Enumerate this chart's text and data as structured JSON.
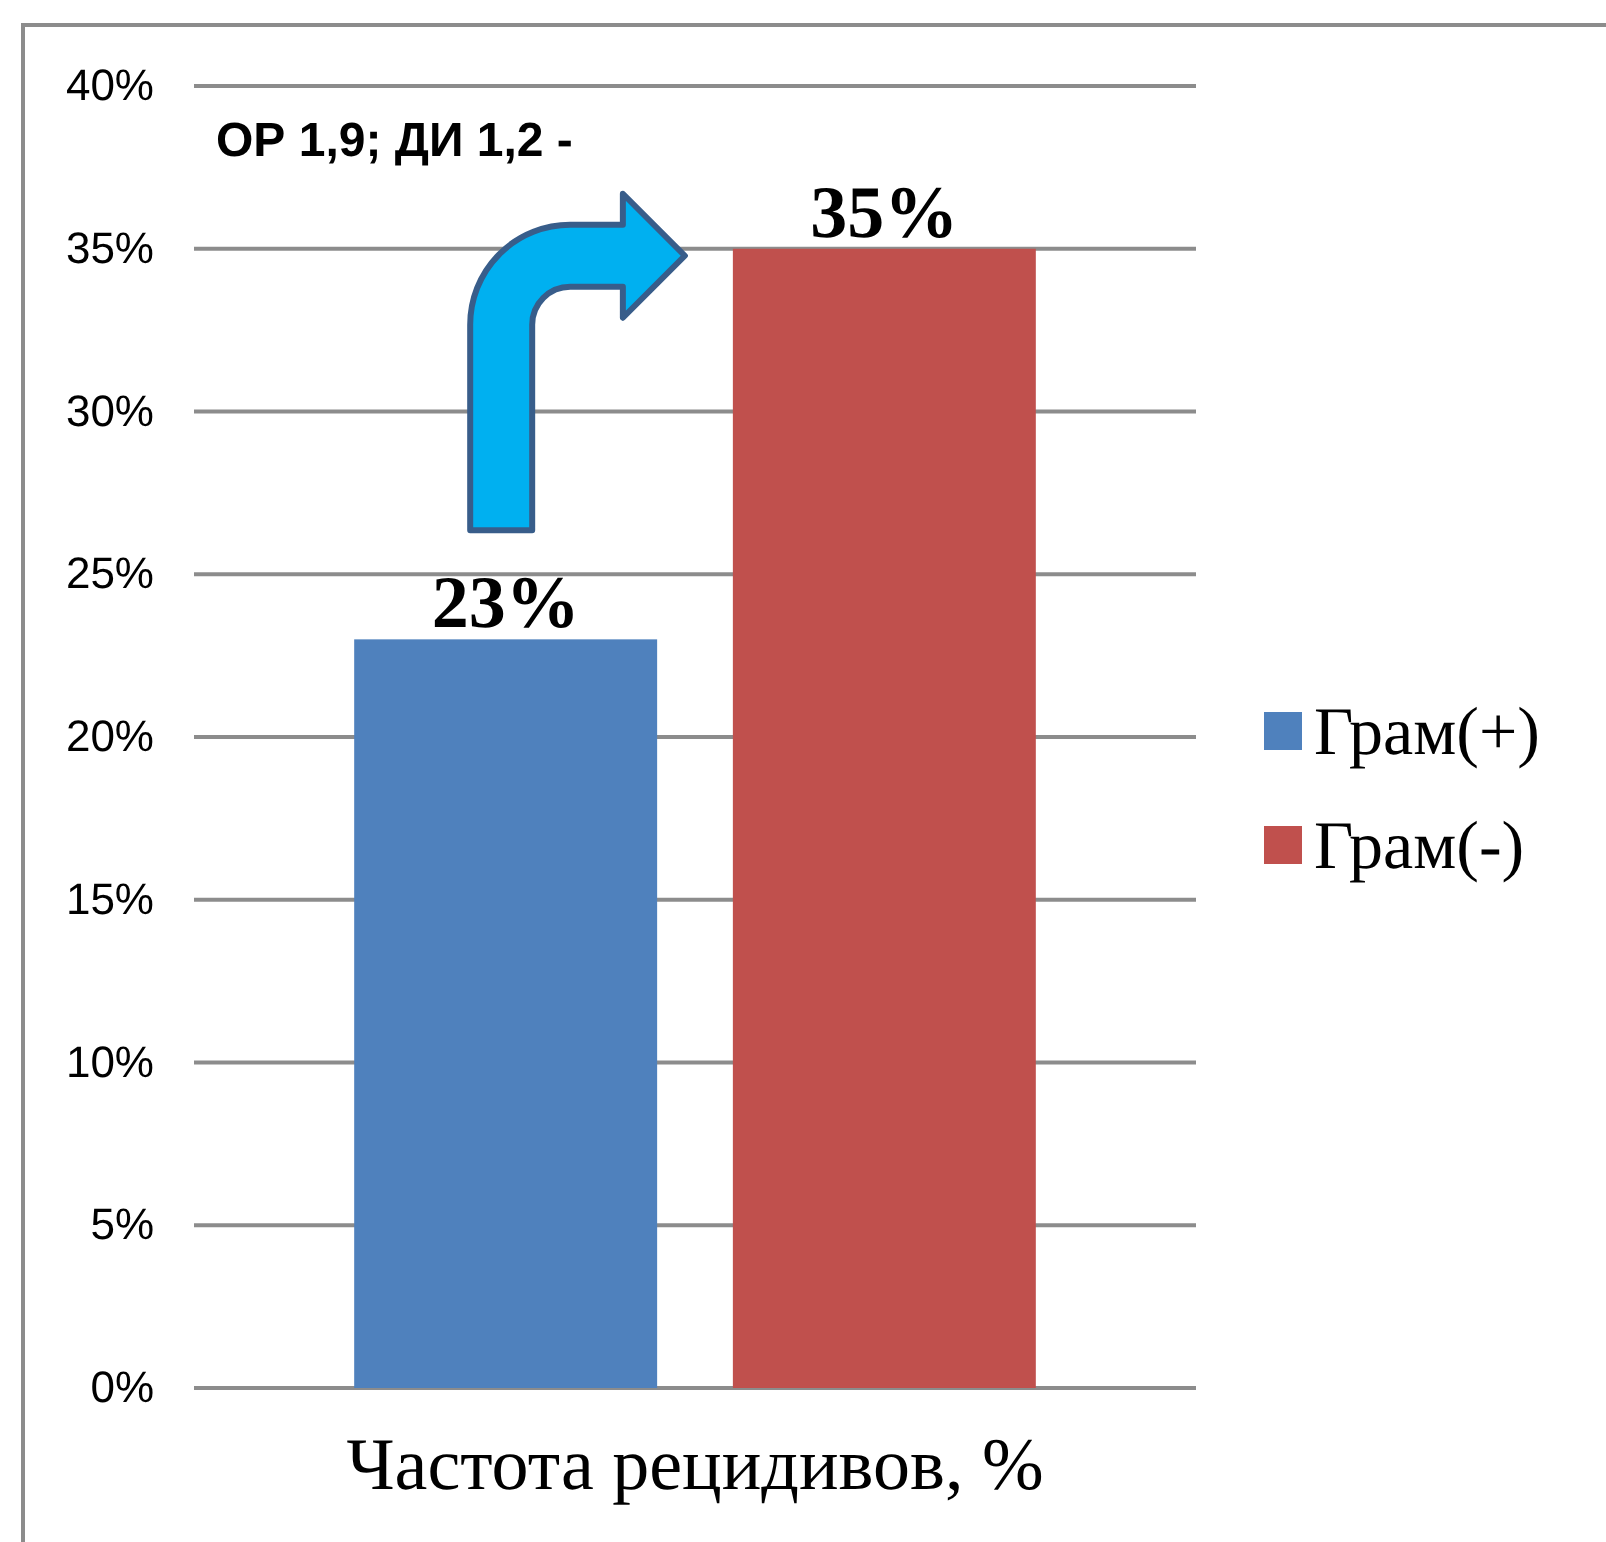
{
  "chart_data": {
    "type": "bar",
    "categories": [
      "Частота рецидивов, %"
    ],
    "series": [
      {
        "name": "Грам(+)",
        "color": "#4f81bd",
        "values": [
          23
        ],
        "value_labels": [
          "23%"
        ]
      },
      {
        "name": "Грам(-)",
        "color": "#c0504d",
        "values": [
          35
        ],
        "value_labels": [
          "35%"
        ]
      }
    ],
    "ylim": [
      0,
      40
    ],
    "yticks": [
      {
        "value": 0,
        "label": "0%"
      },
      {
        "value": 5,
        "label": "5%"
      },
      {
        "value": 10,
        "label": "10%"
      },
      {
        "value": 15,
        "label": "15%"
      },
      {
        "value": 20,
        "label": "20%"
      },
      {
        "value": 25,
        "label": "25%"
      },
      {
        "value": 30,
        "label": "30%"
      },
      {
        "value": 35,
        "label": "35%"
      },
      {
        "value": 40,
        "label": "40%"
      }
    ],
    "grid": "y",
    "legend": "right",
    "annotations": [
      "ОР 1,9; ДИ 1,2 -"
    ]
  }
}
